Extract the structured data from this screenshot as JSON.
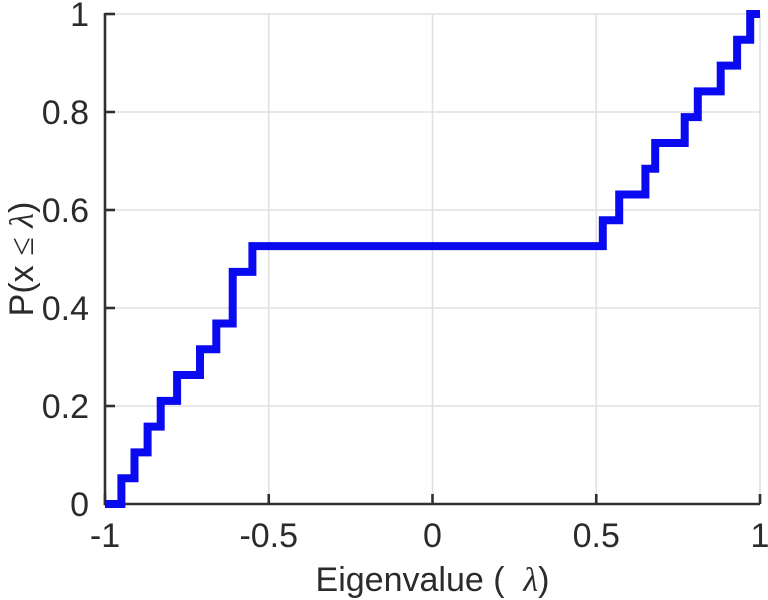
{
  "chart_data": {
    "type": "line",
    "subtype": "ecdf-step",
    "title": "",
    "xlabel_parts": [
      {
        "text": "Eigenvalue (  ",
        "italic": false,
        "serif": false
      },
      {
        "text": "λ",
        "italic": true,
        "serif": true
      },
      {
        "text": ")",
        "italic": false,
        "serif": false
      }
    ],
    "ylabel_parts": [
      {
        "text": "P(x ",
        "italic": false,
        "serif": false
      },
      {
        "text": "≤",
        "italic": false,
        "serif": true
      },
      {
        "text": " ",
        "italic": false,
        "serif": false
      },
      {
        "text": "λ",
        "italic": true,
        "serif": true
      },
      {
        "text": ")",
        "italic": false,
        "serif": false
      }
    ],
    "xlim": [
      -1,
      1
    ],
    "ylim": [
      0,
      1
    ],
    "xticks": {
      "values": [
        -1,
        -0.5,
        0,
        0.5,
        1
      ],
      "labels": [
        "-1",
        "-0.5",
        "0",
        "0.5",
        "1"
      ]
    },
    "yticks": {
      "values": [
        0,
        0.2,
        0.4,
        0.6,
        0.8,
        1
      ],
      "labels": [
        "0",
        "0.2",
        "0.4",
        "0.6",
        "0.8",
        "1"
      ]
    },
    "n_points": 19,
    "eigenvalues": [
      -0.95,
      -0.91,
      -0.87,
      -0.83,
      -0.78,
      -0.71,
      -0.66,
      -0.61,
      -0.61,
      -0.55,
      0.52,
      0.57,
      0.65,
      0.68,
      0.77,
      0.81,
      0.88,
      0.93,
      0.97
    ],
    "cdf": [
      0.0526,
      0.1053,
      0.1579,
      0.2105,
      0.2632,
      0.3158,
      0.3684,
      0.4211,
      0.4737,
      0.5263,
      0.5789,
      0.6316,
      0.6842,
      0.7368,
      0.7895,
      0.8421,
      0.8947,
      0.9474,
      1.0
    ],
    "plateau": {
      "from": -0.55,
      "to": 0.52,
      "level": 0.5263
    },
    "line_start": [
      -1,
      0
    ],
    "line_end_x": 1,
    "grid": true,
    "box": false,
    "legend": null,
    "line_width": 8,
    "colors": {
      "line": "#0a0af0",
      "axis": "#303030",
      "text": "#2b2b2b",
      "grid": "#e0e0e0",
      "background": "#ffffff"
    }
  }
}
